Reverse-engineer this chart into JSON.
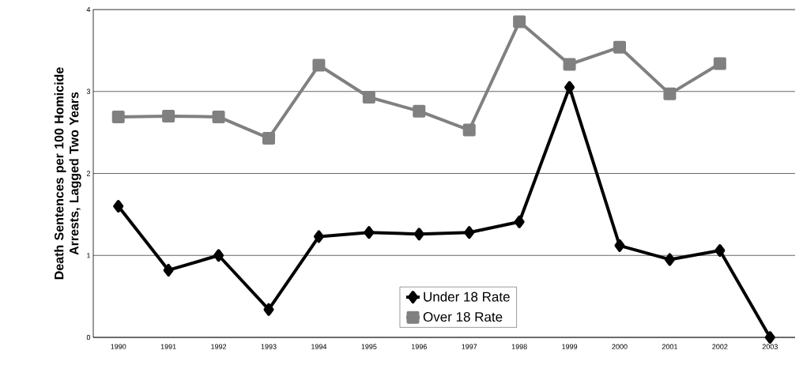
{
  "chart_data": {
    "type": "line",
    "ylabel": "Death Sentences per 100 Homicide Arrests, Lagged Two Years",
    "categories": [
      "1990",
      "1991",
      "1992",
      "1993",
      "1994",
      "1995",
      "1996",
      "1997",
      "1998",
      "1999",
      "2000",
      "2001",
      "2002",
      "2003"
    ],
    "series": [
      {
        "name": "Under 18 Rate",
        "color": "#000000",
        "marker": "diamond",
        "values": [
          1.6,
          0.82,
          1.0,
          0.34,
          1.23,
          1.28,
          1.26,
          1.28,
          1.41,
          3.05,
          1.12,
          0.95,
          1.06,
          0
        ]
      },
      {
        "name": "Over 18 Rate",
        "color": "#808080",
        "marker": "square",
        "values": [
          2.69,
          2.7,
          2.69,
          2.43,
          3.32,
          2.93,
          2.76,
          2.53,
          3.85,
          3.33,
          3.54,
          2.97,
          3.34,
          null
        ]
      }
    ],
    "ylim": [
      0,
      4
    ],
    "yticks": [
      0,
      1,
      2,
      3,
      4
    ],
    "grid": "y",
    "legend": "bottom",
    "line_style": "solid"
  }
}
